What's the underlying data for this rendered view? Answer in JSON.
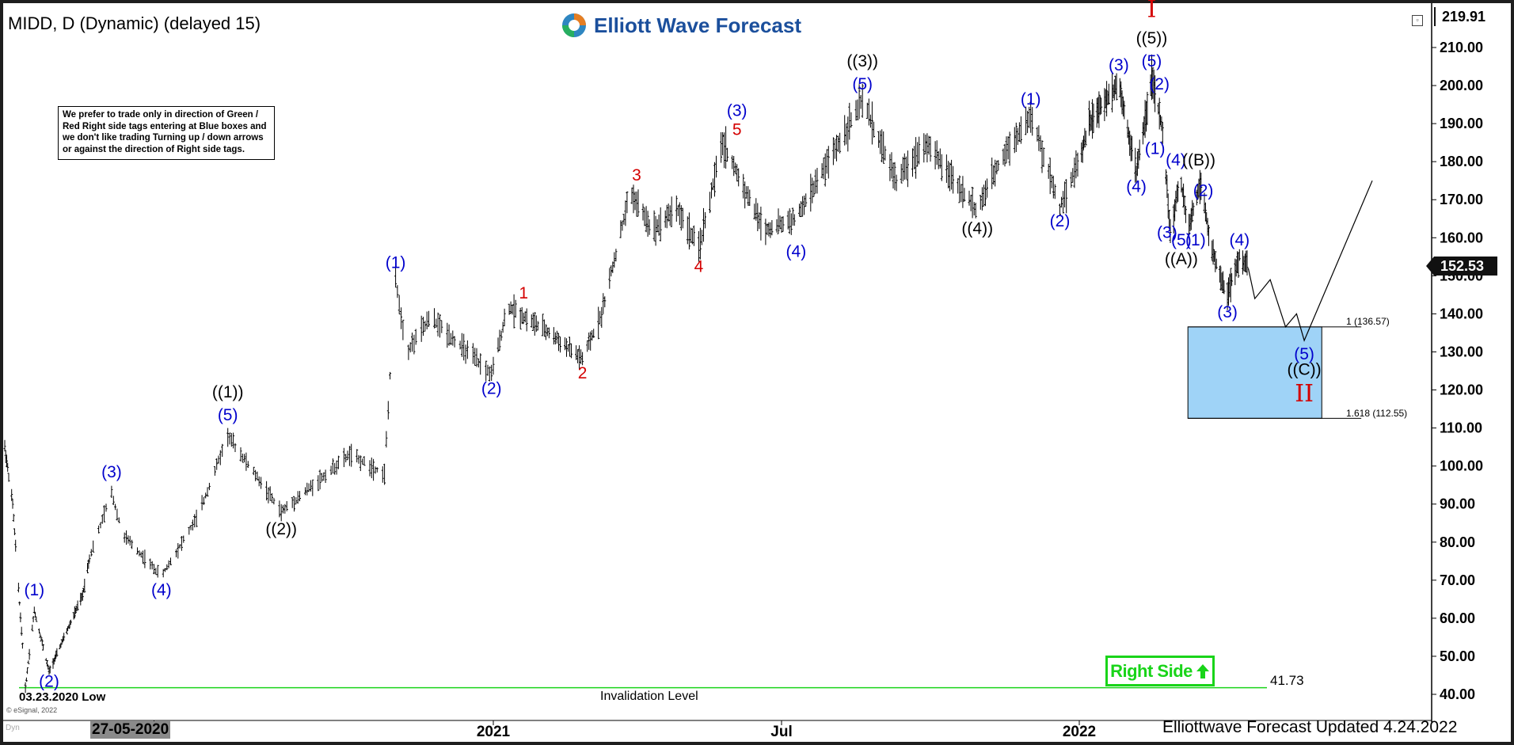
{
  "header": {
    "symbol_title": "MIDD, D (Dynamic) (delayed 15)",
    "brand": "Elliott Wave Forecast",
    "updated": "Elliottwave Forecast Updated 4.24.2022",
    "esignal": "© eSignal, 2022",
    "dyn": "Dyn"
  },
  "note": "We prefer to trade only in direction of Green / Red Right side tags entering at Blue boxes and we don't like trading Turning up / down arrows or against the direction of Right side tags.",
  "right_side_label": "Right Side",
  "price_badges": {
    "top": "219.91",
    "last": "152.53"
  },
  "colors": {
    "up_color": "#19d419",
    "wave_blue": "#0000cc",
    "wave_red": "#d40000",
    "box_blue": "#9fd3f7",
    "bars": "#000000",
    "brand": "#1b4f9c"
  },
  "chart_data": {
    "type": "line",
    "title": "MIDD, D (Dynamic) (delayed 15)",
    "ylim": [
      35,
      222
    ],
    "y_ticks": [
      "40.00",
      "50.00",
      "60.00",
      "70.00",
      "80.00",
      "90.00",
      "100.00",
      "110.00",
      "120.00",
      "130.00",
      "140.00",
      "150.00",
      "160.00",
      "170.00",
      "180.00",
      "190.00",
      "200.00",
      "210.00"
    ],
    "x_tick_labels": [
      "27-05-2020",
      "Jul",
      "2021",
      "Jul",
      "2022"
    ],
    "grid": false,
    "price_path": [
      {
        "x": "2020-03-02",
        "y": 105
      },
      {
        "x": "2020-03-10",
        "y": 90
      },
      {
        "x": "2020-03-23",
        "y": 41.73
      },
      {
        "x": "2020-04-01",
        "y": 62
      },
      {
        "x": "2020-04-16",
        "y": 46
      },
      {
        "x": "2020-05-20",
        "y": 66
      },
      {
        "x": "2020-06-08",
        "y": 93
      },
      {
        "x": "2020-06-14",
        "y": 82
      },
      {
        "x": "2020-07-05",
        "y": 71
      },
      {
        "x": "2020-07-25",
        "y": 87
      },
      {
        "x": "2020-08-10",
        "y": 108
      },
      {
        "x": "2020-09-08",
        "y": 88
      },
      {
        "x": "2020-10-15",
        "y": 103
      },
      {
        "x": "2020-11-03",
        "y": 98
      },
      {
        "x": "2020-11-09",
        "y": 149
      },
      {
        "x": "2020-11-15",
        "y": 130
      },
      {
        "x": "2020-11-28",
        "y": 139
      },
      {
        "x": "2020-12-31",
        "y": 124
      },
      {
        "x": "2021-01-10",
        "y": 142
      },
      {
        "x": "2021-02-05",
        "y": 135
      },
      {
        "x": "2021-02-26",
        "y": 128
      },
      {
        "x": "2021-03-10",
        "y": 140
      },
      {
        "x": "2021-03-28",
        "y": 172
      },
      {
        "x": "2021-04-11",
        "y": 162
      },
      {
        "x": "2021-04-26",
        "y": 168
      },
      {
        "x": "2021-05-10",
        "y": 157
      },
      {
        "x": "2021-05-25",
        "y": 185
      },
      {
        "x": "2021-06-20",
        "y": 162
      },
      {
        "x": "2021-07-10",
        "y": 165
      },
      {
        "x": "2021-08-20",
        "y": 196
      },
      {
        "x": "2021-09-10",
        "y": 175
      },
      {
        "x": "2021-09-28",
        "y": 185
      },
      {
        "x": "2021-10-30",
        "y": 167
      },
      {
        "x": "2021-11-15",
        "y": 182
      },
      {
        "x": "2021-12-02",
        "y": 192
      },
      {
        "x": "2021-12-20",
        "y": 168
      },
      {
        "x": "2022-01-10",
        "y": 190
      },
      {
        "x": "2022-02-06",
        "y": 201
      },
      {
        "x": "2022-02-22",
        "y": 177
      },
      {
        "x": "2022-03-08",
        "y": 202
      },
      {
        "x": "2022-03-18",
        "y": 188
      },
      {
        "x": "2022-03-25",
        "y": 161
      },
      {
        "x": "2022-04-03",
        "y": 176
      },
      {
        "x": "2022-04-10",
        "y": 162
      },
      {
        "x": "2022-04-22",
        "y": 175
      },
      {
        "x": "2022-05-01",
        "y": 157
      },
      {
        "x": "2022-05-16",
        "y": 145
      },
      {
        "x": "2022-05-27",
        "y": 155
      },
      {
        "x": "2022-06-04",
        "y": 152
      }
    ],
    "projection": [
      {
        "x": "2022-06-04",
        "y": 152
      },
      {
        "x": "2022-06-10",
        "y": 144
      },
      {
        "x": "2022-06-24",
        "y": 149
      },
      {
        "x": "2022-07-08",
        "y": 136.57
      },
      {
        "x": "2022-07-18",
        "y": 140
      },
      {
        "x": "2022-07-25",
        "y": 133
      },
      {
        "x": "2022-09-25",
        "y": 175
      }
    ],
    "labels": [
      {
        "text": "(1)",
        "x": "2020-04-01",
        "y": 66,
        "color": "blue"
      },
      {
        "text": "(2)",
        "x": "2020-04-16",
        "y": 42,
        "color": "blue"
      },
      {
        "text": "(3)",
        "x": "2020-06-08",
        "y": 97,
        "color": "blue"
      },
      {
        "text": "(4)",
        "x": "2020-07-05",
        "y": 66,
        "color": "blue"
      },
      {
        "text": "(5)",
        "x": "2020-08-10",
        "y": 112,
        "color": "blue"
      },
      {
        "text": "((1))",
        "x": "2020-08-10",
        "y": 118,
        "color": "black"
      },
      {
        "text": "((2))",
        "x": "2020-09-08",
        "y": 82,
        "color": "black"
      },
      {
        "text": "(1)",
        "x": "2020-11-09",
        "y": 152,
        "color": "blue"
      },
      {
        "text": "(2)",
        "x": "2020-12-31",
        "y": 119,
        "color": "blue"
      },
      {
        "text": "1",
        "x": "2021-01-20",
        "y": 144,
        "color": "red"
      },
      {
        "text": "2",
        "x": "2021-02-26",
        "y": 123,
        "color": "red"
      },
      {
        "text": "3",
        "x": "2021-04-01",
        "y": 175,
        "color": "red"
      },
      {
        "text": "4",
        "x": "2021-05-10",
        "y": 151,
        "color": "red"
      },
      {
        "text": "5",
        "x": "2021-06-03",
        "y": 187,
        "color": "red"
      },
      {
        "text": "(3)",
        "x": "2021-06-03",
        "y": 192,
        "color": "blue"
      },
      {
        "text": "(4)",
        "x": "2021-07-10",
        "y": 155,
        "color": "blue"
      },
      {
        "text": "(5)",
        "x": "2021-08-20",
        "y": 199,
        "color": "blue"
      },
      {
        "text": "((3))",
        "x": "2021-08-20",
        "y": 205,
        "color": "black"
      },
      {
        "text": "((4))",
        "x": "2021-10-30",
        "y": 161,
        "color": "black"
      },
      {
        "text": "(1)",
        "x": "2021-12-02",
        "y": 195,
        "color": "blue"
      },
      {
        "text": "(2)",
        "x": "2021-12-20",
        "y": 163,
        "color": "blue"
      },
      {
        "text": "(3)",
        "x": "2022-02-06",
        "y": 204,
        "color": "blue"
      },
      {
        "text": "(4)",
        "x": "2022-02-22",
        "y": 172,
        "color": "blue"
      },
      {
        "text": "(5)",
        "x": "2022-03-08",
        "y": 205,
        "color": "blue"
      },
      {
        "text": "((5))",
        "x": "2022-03-08",
        "y": 211,
        "color": "black"
      },
      {
        "text": "I",
        "x": "2022-03-08",
        "y": 218,
        "color": "red"
      },
      {
        "text": "(1)",
        "x": "2022-03-11",
        "y": 182,
        "color": "blue"
      },
      {
        "text": "(2)",
        "x": "2022-03-15",
        "y": 199,
        "color": "blue"
      },
      {
        "text": "(3)",
        "x": "2022-03-22",
        "y": 160,
        "color": "blue"
      },
      {
        "text": "(4)",
        "x": "2022-03-30",
        "y": 179,
        "color": "blue"
      },
      {
        "text": "(5)",
        "x": "2022-04-04",
        "y": 158,
        "color": "blue"
      },
      {
        "text": "((A))",
        "x": "2022-04-04",
        "y": 153,
        "color": "black"
      },
      {
        "text": "((B))",
        "x": "2022-04-20",
        "y": 179,
        "color": "black"
      },
      {
        "text": "(1)",
        "x": "2022-04-17",
        "y": 158,
        "color": "blue"
      },
      {
        "text": "(2)",
        "x": "2022-04-24",
        "y": 171,
        "color": "blue"
      },
      {
        "text": "(3)",
        "x": "2022-05-16",
        "y": 139,
        "color": "blue"
      },
      {
        "text": "(4)",
        "x": "2022-05-27",
        "y": 158,
        "color": "blue"
      },
      {
        "text": "(5)",
        "x": "2022-07-25",
        "y": 128,
        "color": "blue"
      },
      {
        "text": "((C))",
        "x": "2022-07-25",
        "y": 124,
        "color": "black"
      },
      {
        "text": "II",
        "x": "2022-07-25",
        "y": 117,
        "color": "red"
      }
    ],
    "blue_box": {
      "x_start": "2022-04-10",
      "x_end": "2022-08-10",
      "y_top": 136.57,
      "y_bottom": 112.55
    },
    "fib_labels": {
      "upper": "1 (136.57)",
      "lower": "1.618 (112.55)"
    },
    "invalidation": {
      "value": 41.73,
      "label": "41.73",
      "text": "Invalidation Level",
      "low_label": "03.23.2020 Low"
    }
  }
}
